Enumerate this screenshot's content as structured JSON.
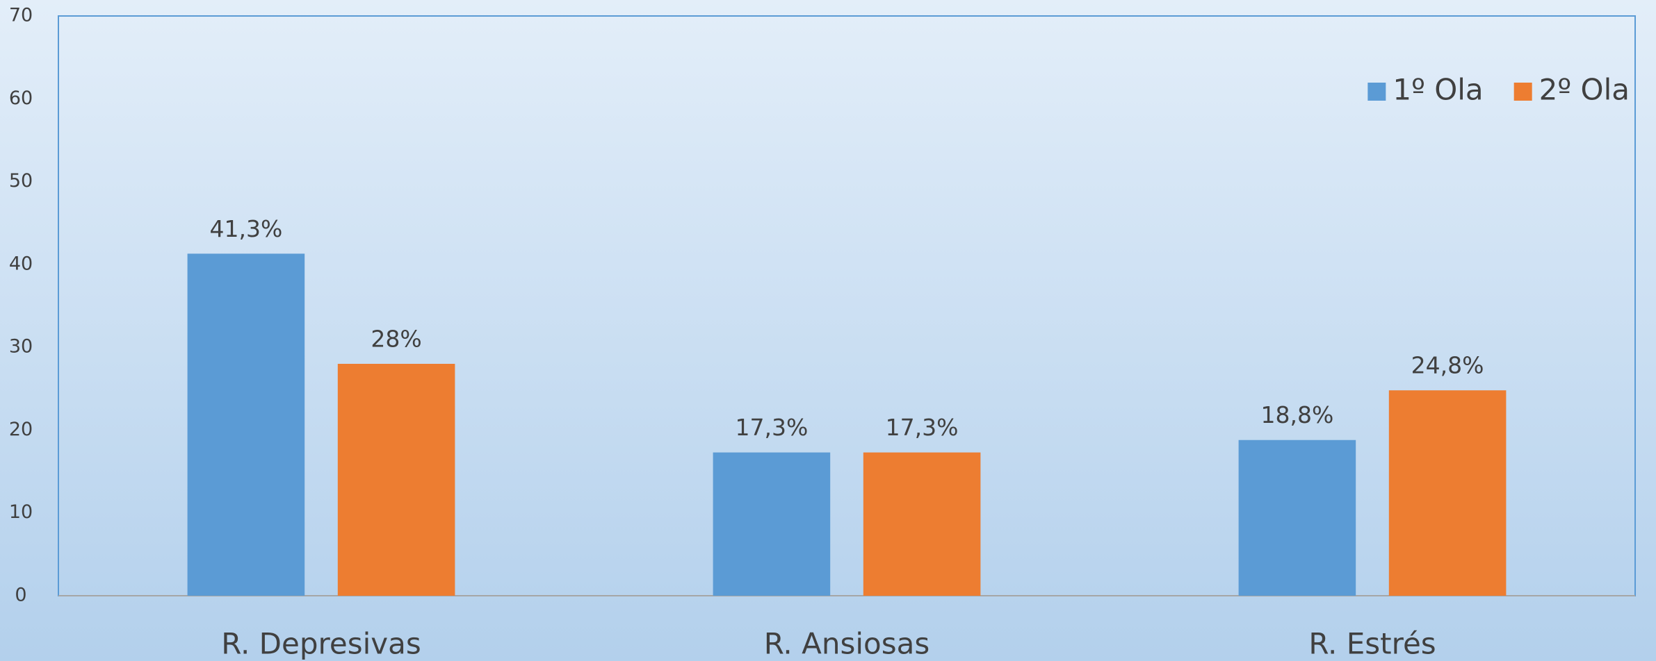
{
  "chart_data": {
    "type": "bar",
    "categories": [
      "R. Depresivas",
      "R. Ansiosas",
      "R. Estrés"
    ],
    "series": [
      {
        "name": "1º Ola",
        "color": "#5b9bd5",
        "values": [
          41.3,
          17.3,
          18.8
        ],
        "value_labels": [
          "41,3%",
          "17,3%",
          "18,8%"
        ]
      },
      {
        "name": "2º Ola",
        "color": "#ed7d31",
        "values": [
          28,
          17.3,
          24.8
        ],
        "value_labels": [
          "28%",
          "17,3%",
          "24,8%"
        ]
      }
    ],
    "ylim": [
      0,
      70
    ],
    "yticks": [
      0,
      10,
      20,
      30,
      40,
      50,
      60,
      70
    ],
    "legend": "upper right",
    "grid": false
  }
}
